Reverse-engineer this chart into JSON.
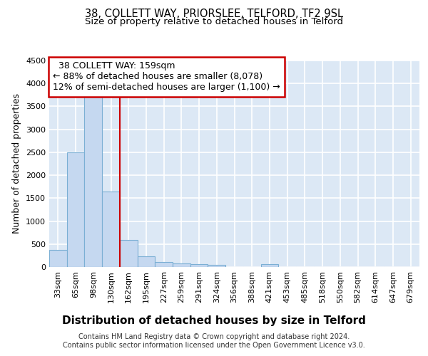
{
  "title": "38, COLLETT WAY, PRIORSLEE, TELFORD, TF2 9SL",
  "subtitle": "Size of property relative to detached houses in Telford",
  "xlabel": "Distribution of detached houses by size in Telford",
  "ylabel": "Number of detached properties",
  "footer_line1": "Contains HM Land Registry data © Crown copyright and database right 2024.",
  "footer_line2": "Contains public sector information licensed under the Open Government Licence v3.0.",
  "categories": [
    "33sqm",
    "65sqm",
    "98sqm",
    "130sqm",
    "162sqm",
    "195sqm",
    "227sqm",
    "259sqm",
    "291sqm",
    "324sqm",
    "356sqm",
    "388sqm",
    "421sqm",
    "453sqm",
    "485sqm",
    "518sqm",
    "550sqm",
    "582sqm",
    "614sqm",
    "647sqm",
    "679sqm"
  ],
  "values": [
    370,
    2500,
    3750,
    1650,
    590,
    230,
    110,
    75,
    55,
    45,
    0,
    0,
    65,
    0,
    0,
    0,
    0,
    0,
    0,
    0,
    0
  ],
  "bar_color": "#c5d8f0",
  "bar_edge_color": "#7bafd4",
  "background_color": "#dce8f5",
  "grid_color": "#ffffff",
  "ylim": [
    0,
    4500
  ],
  "yticks": [
    0,
    500,
    1000,
    1500,
    2000,
    2500,
    3000,
    3500,
    4000,
    4500
  ],
  "property_label": "38 COLLETT WAY: 159sqm",
  "pct_smaller": "88% of detached houses are smaller (8,078)",
  "pct_larger": "12% of semi-detached houses are larger (1,100)",
  "vline_x_index": 3.5,
  "annotation_box_color": "#ffffff",
  "annotation_box_edge": "#cc0000",
  "vline_color": "#cc0000",
  "title_fontsize": 10.5,
  "subtitle_fontsize": 9.5,
  "xlabel_fontsize": 11,
  "ylabel_fontsize": 9,
  "tick_fontsize": 8,
  "annotation_fontsize": 9,
  "footer_fontsize": 7
}
